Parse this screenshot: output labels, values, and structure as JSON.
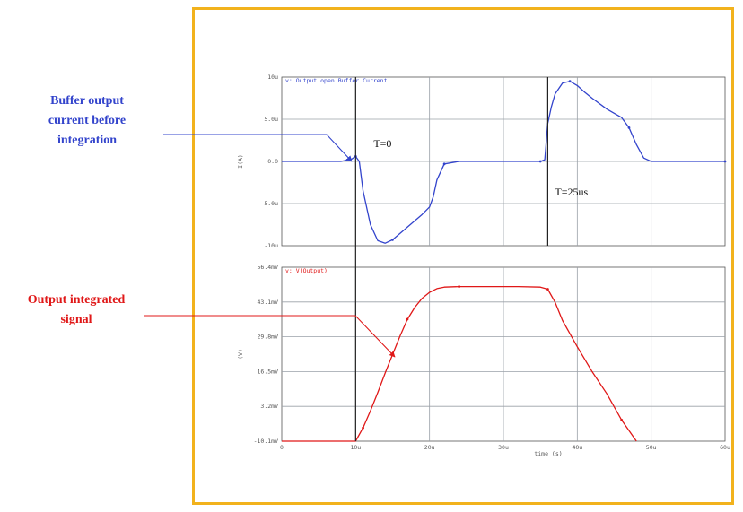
{
  "callouts": {
    "buffer": [
      "Buffer output",
      "current before",
      "integration"
    ],
    "output": [
      "Output integrated",
      "signal"
    ]
  },
  "colors": {
    "frame": "#f2b21c",
    "buffer": "#3344cc",
    "output": "#e01818",
    "grid": "#9aa0a8",
    "marker": "#222222"
  },
  "chart_data": [
    {
      "type": "line",
      "title": "v: Output open Buffer Current",
      "ylabel": "I(A)",
      "xlim": [
        0,
        60
      ],
      "ylim": [
        -10,
        10
      ],
      "x_ticks": [
        0,
        10,
        20,
        30,
        40,
        50,
        60
      ],
      "y_ticks": [
        -10,
        -5,
        0,
        5,
        10
      ],
      "y_tick_labels": [
        "-10u",
        "-5.0u",
        "0.0",
        "5.0u",
        "10u"
      ],
      "grid": true,
      "markers": [
        {
          "label": "T=0",
          "x": 10
        },
        {
          "label": "T=25us",
          "x": 36
        }
      ],
      "series": [
        {
          "x": [
            0,
            8,
            9.5,
            10,
            10.5,
            11,
            12,
            13,
            14,
            15,
            17,
            19,
            20,
            20.5,
            21,
            22,
            24,
            26,
            28,
            30,
            32,
            35,
            35.6,
            36,
            36.5,
            37,
            38,
            39,
            40,
            41,
            42,
            44,
            46,
            47,
            48,
            49,
            50,
            52,
            56,
            60
          ],
          "y": [
            0,
            0,
            0.3,
            0.6,
            0,
            -3.5,
            -7.5,
            -9.4,
            -9.7,
            -9.3,
            -7.8,
            -6.3,
            -5.4,
            -4.2,
            -2.2,
            -0.3,
            0,
            0,
            0,
            0,
            0,
            0,
            0.2,
            4.5,
            6.5,
            8.0,
            9.3,
            9.5,
            9.0,
            8.2,
            7.5,
            6.2,
            5.2,
            4.0,
            2.0,
            0.4,
            0,
            0,
            0,
            0
          ]
        }
      ]
    },
    {
      "type": "line",
      "title": "v: V(Output)",
      "ylabel": "(V)",
      "xlabel": "time (s)",
      "xlim": [
        0,
        60
      ],
      "ylim": [
        -10.1,
        56.4
      ],
      "x_ticks": [
        0,
        10,
        20,
        30,
        40,
        50,
        60
      ],
      "x_tick_labels": [
        "0",
        "10u",
        "20u",
        "30u",
        "40u",
        "50u",
        "60u"
      ],
      "y_ticks": [
        -10.1,
        3.2,
        16.5,
        29.8,
        43.1,
        56.4
      ],
      "y_tick_labels": [
        "-10.1mV",
        "3.2mV",
        "16.5mV",
        "29.8mV",
        "43.1mV",
        "56.4mV"
      ],
      "grid": true,
      "series": [
        {
          "x": [
            0,
            8,
            10,
            11,
            12,
            13,
            14,
            15,
            16,
            17,
            18,
            19,
            20,
            21,
            22,
            24,
            26,
            28,
            30,
            32,
            35,
            36,
            37,
            38,
            40,
            42,
            44,
            46,
            48
          ],
          "y": [
            -10.1,
            -10.1,
            -10.1,
            -5,
            1.5,
            8.5,
            16,
            23,
            30,
            36.5,
            41,
            44.5,
            46.8,
            48.2,
            48.8,
            49,
            49,
            49,
            49,
            49,
            48.8,
            48,
            43,
            36,
            26,
            16.5,
            8,
            -2,
            -10.1
          ]
        }
      ]
    }
  ]
}
